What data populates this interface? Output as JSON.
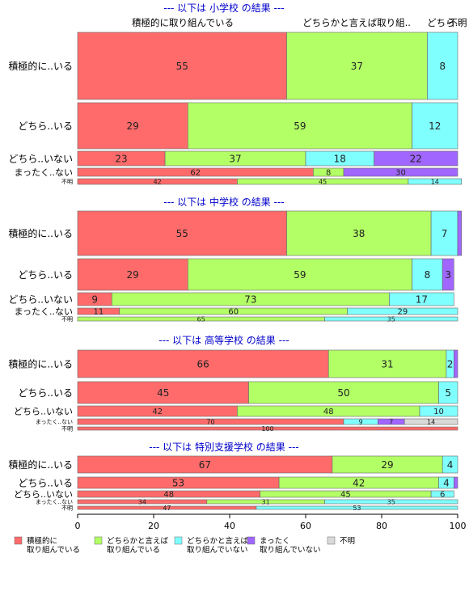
{
  "chart_data": {
    "type": "bar",
    "orientation": "horizontal",
    "stacked": true,
    "xlim": [
      0,
      100
    ],
    "x_ticks": [
      "0",
      "20",
      "40",
      "60",
      "80",
      "100"
    ],
    "top_labels": [
      "積極的に取り組んでいる",
      "どちらかと言えば取り組..",
      "どちら..",
      "不明"
    ],
    "categories": [
      "積極的に..いる",
      "どちら..いる",
      "どちら..いない",
      "まったく..ない",
      "不明"
    ],
    "legend": {
      "placement": "bottom",
      "items": [
        {
          "name": "積極的に\n取り組んでいる",
          "color": "#ff6b6b"
        },
        {
          "name": "どちらかと言えば\n取り組んでいる",
          "color": "#b3ff66"
        },
        {
          "name": "どちらかと言えば\n取り組んでいない",
          "color": "#80ffff"
        },
        {
          "name": "まったく\n取り組んでいない",
          "color": "#a066ff"
        },
        {
          "name": "不明",
          "color": "#d9d9d9"
        }
      ]
    },
    "panels": [
      {
        "title": "--- 以下は 小学校 の結果 ---",
        "rows": [
          {
            "label": "積極的に..いる",
            "values": [
              55,
              37,
              8,
              0,
              0
            ]
          },
          {
            "label": "どちら..いる",
            "values": [
              29,
              59,
              12,
              0,
              0
            ]
          },
          {
            "label": "どちら..いない",
            "values": [
              23,
              37,
              18,
              22,
              0
            ]
          },
          {
            "label": "まったく..ない",
            "values": [
              62,
              8,
              0,
              30,
              0
            ]
          },
          {
            "label": "不明",
            "values": [
              42,
              45,
              14,
              0,
              0
            ]
          }
        ]
      },
      {
        "title": "--- 以下は 中学校 の結果 ---",
        "rows": [
          {
            "label": "積極的に..いる",
            "values": [
              55,
              38,
              7,
              1,
              0
            ]
          },
          {
            "label": "どちら..いる",
            "values": [
              29,
              59,
              8,
              3,
              0
            ]
          },
          {
            "label": "どちら..いない",
            "values": [
              9,
              73,
              17,
              0,
              0
            ]
          },
          {
            "label": "まったく..ない",
            "values": [
              11,
              60,
              29,
              0,
              0
            ]
          },
          {
            "label": "不明",
            "values": [
              0,
              65,
              35,
              0,
              0
            ]
          }
        ]
      },
      {
        "title": "--- 以下は 高等学校 の結果 ---",
        "rows": [
          {
            "label": "積極的に..いる",
            "values": [
              66,
              31,
              2,
              1,
              0
            ]
          },
          {
            "label": "どちら..いる",
            "values": [
              45,
              50,
              5,
              0,
              0
            ]
          },
          {
            "label": "どちら..いない",
            "values": [
              42,
              48,
              10,
              0,
              0
            ]
          },
          {
            "label": "まったく..ない",
            "values": [
              70,
              0,
              9,
              7,
              14
            ]
          },
          {
            "label": "不明",
            "values": [
              100,
              0,
              0,
              0,
              0
            ]
          }
        ]
      },
      {
        "title": "--- 以下は 特別支援学校 の結果 ---",
        "rows": [
          {
            "label": "積極的に..いる",
            "values": [
              67,
              29,
              4,
              0,
              0
            ]
          },
          {
            "label": "どちら..いる",
            "values": [
              53,
              42,
              4,
              1,
              0
            ]
          },
          {
            "label": "どちら..いない",
            "values": [
              48,
              45,
              6,
              0,
              0
            ]
          },
          {
            "label": "まったく..ない",
            "values": [
              34,
              31,
              35,
              0,
              0
            ]
          },
          {
            "label": "不明",
            "values": [
              47,
              0,
              53,
              0,
              0
            ]
          }
        ]
      }
    ]
  }
}
